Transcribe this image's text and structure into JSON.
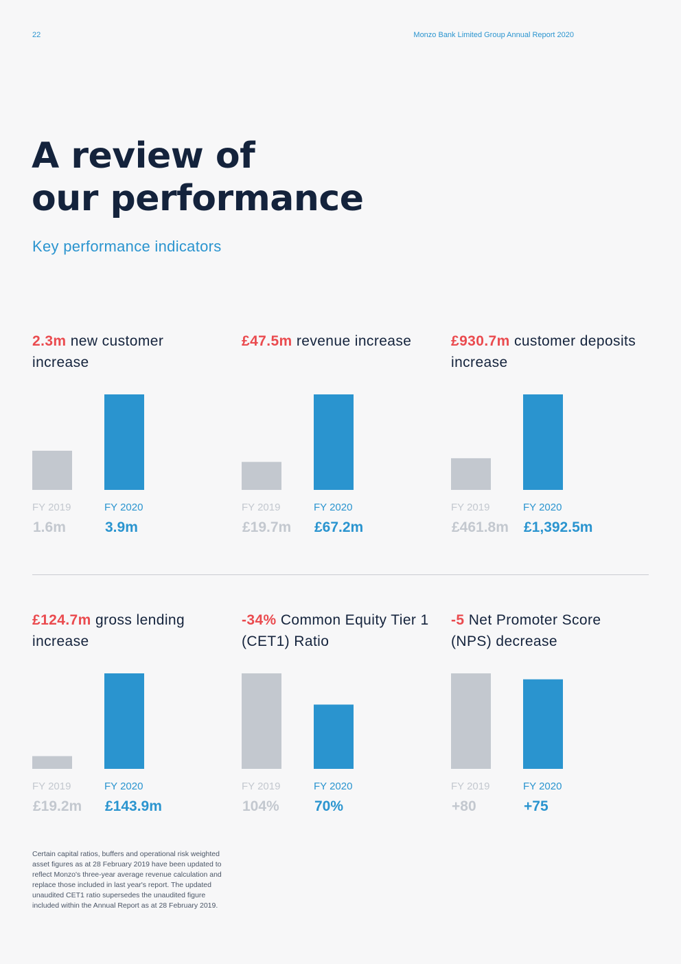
{
  "header": {
    "page_number": "22",
    "report_title": "Monzo Bank Limited Group Annual Report 2020"
  },
  "page_title_lines": [
    "A review of",
    "our performance"
  ],
  "subtitle": "Key performance indicators",
  "colors": {
    "prior": "#c3c8cf",
    "current": "#2a94cf",
    "highlight": "#ea4b4f"
  },
  "chart_data": [
    {
      "type": "bar",
      "title_highlight": "2.3m",
      "title_rest": " new customer increase",
      "categories": [
        "FY 2019",
        "FY 2020"
      ],
      "values": [
        1.6,
        3.9
      ],
      "value_labels": [
        "1.6m",
        "3.9m"
      ]
    },
    {
      "type": "bar",
      "title_highlight": "£47.5m",
      "title_rest": " revenue increase",
      "categories": [
        "FY 2019",
        "FY 2020"
      ],
      "values": [
        19.7,
        67.2
      ],
      "value_labels": [
        "£19.7m",
        "£67.2m"
      ]
    },
    {
      "type": "bar",
      "title_highlight": "£930.7m",
      "title_rest": " customer deposits increase",
      "categories": [
        "FY 2019",
        "FY 2020"
      ],
      "values": [
        461.8,
        1392.5
      ],
      "value_labels": [
        "£461.8m",
        "£1,392.5m"
      ]
    },
    {
      "type": "bar",
      "title_highlight": "£124.7m",
      "title_rest": " gross lending increase",
      "categories": [
        "FY 2019",
        "FY 2020"
      ],
      "values": [
        19.2,
        143.9
      ],
      "value_labels": [
        "£19.2m",
        "£143.9m"
      ]
    },
    {
      "type": "bar",
      "title_highlight": "-34%",
      "title_rest": " Common Equity Tier 1 (CET1) Ratio",
      "categories": [
        "FY 2019",
        "FY 2020"
      ],
      "values": [
        104,
        70
      ],
      "value_labels": [
        "104%",
        "70%"
      ]
    },
    {
      "type": "bar",
      "title_highlight": "-5",
      "title_rest": " Net Promoter Score (NPS) decrease",
      "categories": [
        "FY 2019",
        "FY 2020"
      ],
      "values": [
        80,
        75
      ],
      "value_labels": [
        "+80",
        "+75"
      ]
    }
  ],
  "footnote": "Certain capital ratios, buffers and operational risk weighted asset figures as at 28 February 2019 have been updated to reflect Monzo's three-year average revenue calculation and replace those included in last year's report. The updated unaudited CET1 ratio supersedes the unaudited figure included within the Annual Report as at 28 February 2019."
}
